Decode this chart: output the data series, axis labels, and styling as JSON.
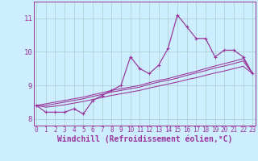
{
  "xlabel": "Windchill (Refroidissement éolien,°C)",
  "background_color": "#cceeff",
  "grid_color": "#aacccc",
  "line_color": "#993399",
  "x_data": [
    0,
    1,
    2,
    3,
    4,
    5,
    6,
    7,
    8,
    9,
    10,
    11,
    12,
    13,
    14,
    15,
    16,
    17,
    18,
    19,
    20,
    21,
    22,
    23
  ],
  "y_main": [
    8.4,
    8.2,
    8.2,
    8.2,
    8.3,
    8.15,
    8.55,
    8.7,
    8.85,
    9.0,
    9.85,
    9.5,
    9.35,
    9.6,
    10.1,
    11.1,
    10.75,
    10.4,
    10.4,
    9.85,
    10.05,
    10.05,
    9.85,
    9.35
  ],
  "y_line1": [
    8.4,
    8.45,
    8.5,
    8.55,
    8.6,
    8.65,
    8.72,
    8.78,
    8.85,
    8.9,
    8.95,
    9.0,
    9.08,
    9.15,
    9.2,
    9.28,
    9.35,
    9.42,
    9.5,
    9.58,
    9.65,
    9.72,
    9.8,
    9.35
  ],
  "y_line2": [
    8.4,
    8.4,
    8.45,
    8.5,
    8.55,
    8.6,
    8.67,
    8.73,
    8.8,
    8.85,
    8.9,
    8.95,
    9.03,
    9.1,
    9.15,
    9.22,
    9.3,
    9.37,
    9.44,
    9.52,
    9.58,
    9.65,
    9.73,
    9.35
  ],
  "y_line3": [
    8.4,
    8.35,
    8.38,
    8.42,
    8.47,
    8.52,
    8.58,
    8.64,
    8.7,
    8.75,
    8.8,
    8.85,
    8.92,
    8.98,
    9.04,
    9.1,
    9.17,
    9.23,
    9.3,
    9.37,
    9.43,
    9.5,
    9.57,
    9.35
  ],
  "ylim": [
    7.8,
    11.5
  ],
  "yticks": [
    8,
    9,
    10,
    11
  ],
  "xticks": [
    0,
    1,
    2,
    3,
    4,
    5,
    6,
    7,
    8,
    9,
    10,
    11,
    12,
    13,
    14,
    15,
    16,
    17,
    18,
    19,
    20,
    21,
    22,
    23
  ],
  "tick_fontsize": 5.5,
  "xlabel_fontsize": 7,
  "marker": "+"
}
